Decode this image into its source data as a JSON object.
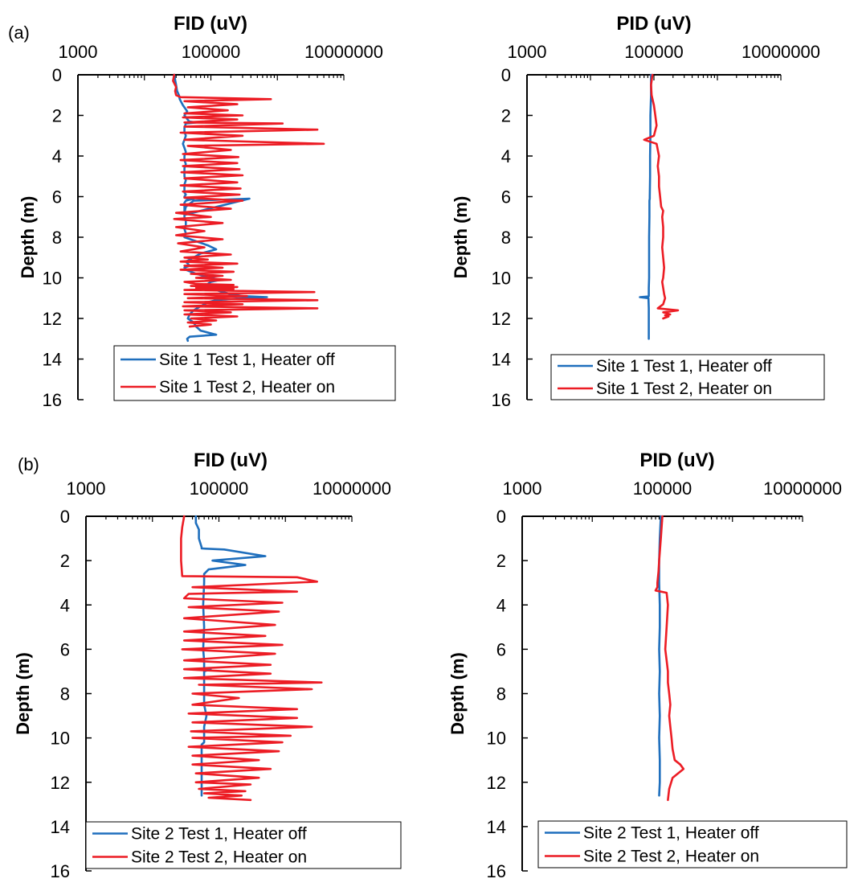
{
  "panel_labels": [
    "(a)",
    "(b)"
  ],
  "colors": {
    "series1": "#1f6fbd",
    "series2": "#ec1c24",
    "axis": "#000000"
  },
  "chart_data": [
    {
      "type": "line",
      "panel": "(a)",
      "title": "FID (uV)",
      "xlabel": "FID (uV)",
      "ylabel": "Depth (m)",
      "xscale": "log",
      "xlim": [
        1000,
        10000000
      ],
      "xticks": [
        1000,
        100000,
        10000000
      ],
      "xtick_labels": [
        "1000",
        "100000",
        "10000000"
      ],
      "ylim": [
        0,
        16
      ],
      "yinverted": true,
      "yticks": [
        0,
        2,
        4,
        6,
        8,
        10,
        12,
        14,
        16
      ],
      "ytick_labels": [
        "0",
        "2",
        "4",
        "6",
        "8",
        "10",
        "12",
        "14",
        "16"
      ],
      "legend_position": "bottom",
      "grid": false,
      "series": [
        {
          "name": "Site 1 Test 1, Heater off",
          "color": "#1f6fbd",
          "x": [
            28000,
            30000,
            31000,
            33000,
            34000,
            38000,
            44000,
            40000,
            47000,
            60000,
            42000,
            40000,
            40000,
            42000,
            40000,
            38000,
            40000,
            42000,
            40000,
            40000,
            42000,
            40000,
            40000,
            40000,
            42000,
            40000,
            40000,
            40000,
            42000,
            40000,
            40000,
            45000,
            55000,
            48000,
            42000,
            40000,
            40000,
            40000,
            40000,
            380000,
            55000,
            42000,
            40000,
            40000,
            42000,
            42000,
            40000,
            42000,
            40000,
            60000,
            90000,
            120000,
            70000,
            55000,
            42000,
            48000,
            40000,
            42000,
            60000,
            100000,
            140000,
            100000,
            90000,
            90000,
            120000,
            150000,
            200000,
            250000,
            300000,
            700000,
            300000,
            180000,
            120000,
            90000,
            70000,
            55000,
            48000,
            45000,
            55000,
            60000,
            70000,
            120000,
            48000,
            44000,
            45000
          ],
          "y": [
            0.0,
            0.5,
            0.8,
            1.0,
            1.2,
            1.5,
            1.8,
            2.0,
            2.3,
            2.35,
            2.4,
            2.6,
            2.8,
            3.0,
            3.2,
            3.4,
            3.6,
            3.8,
            4.0,
            4.2,
            4.4,
            4.6,
            4.8,
            5.0,
            5.2,
            5.4,
            5.6,
            5.8,
            5.9,
            6.0,
            6.05,
            6.1,
            6.12,
            6.15,
            6.2,
            6.3,
            6.5,
            6.7,
            6.9,
            6.1,
            6.2,
            6.5,
            6.8,
            7.0,
            7.2,
            7.4,
            7.6,
            7.8,
            8.0,
            8.2,
            8.4,
            8.6,
            8.8,
            9.0,
            9.2,
            9.4,
            9.5,
            9.6,
            9.8,
            10.0,
            10.1,
            10.2,
            10.3,
            10.5,
            10.6,
            10.7,
            10.8,
            10.85,
            10.9,
            10.95,
            11.0,
            11.05,
            11.1,
            11.2,
            11.4,
            11.6,
            11.8,
            12.0,
            12.2,
            12.4,
            12.6,
            12.8,
            12.9,
            13.0,
            13.1
          ]
        },
        {
          "name": "Site 1 Test 2, Heater on",
          "color": "#ec1c24",
          "x": [
            28000,
            27000,
            30000,
            29000,
            30000,
            35000,
            800000,
            40000,
            250000,
            45000,
            180000,
            40000,
            300000,
            38000,
            250000,
            40000,
            1200000,
            40000,
            4000000,
            35000,
            300000,
            40000,
            5000000,
            45000,
            200000,
            38000,
            260000,
            35000,
            250000,
            38000,
            270000,
            36000,
            300000,
            40000,
            250000,
            35000,
            280000,
            38000,
            270000,
            40000,
            300000,
            35000,
            200000,
            30000,
            100000,
            28000,
            150000,
            30000,
            80000,
            30000,
            150000,
            32000,
            80000,
            35000,
            200000,
            40000,
            90000,
            35000,
            250000,
            40000,
            150000,
            35000,
            220000,
            50000,
            150000,
            60000,
            200000,
            40000,
            60000,
            220000,
            50000,
            250000,
            60000,
            220000,
            40000,
            3600000,
            40000,
            350000,
            45000,
            4000000,
            40000,
            300000,
            38000,
            4000000,
            40000,
            200000,
            40000,
            250000,
            50000,
            120000,
            45000,
            100000,
            48000
          ],
          "y": [
            0.0,
            0.3,
            0.6,
            0.8,
            1.0,
            1.1,
            1.2,
            1.3,
            1.45,
            1.6,
            1.75,
            1.9,
            2.0,
            2.1,
            2.2,
            2.35,
            2.4,
            2.55,
            2.7,
            2.85,
            3.0,
            3.2,
            3.4,
            3.5,
            3.7,
            3.9,
            4.05,
            4.2,
            4.35,
            4.5,
            4.65,
            4.8,
            4.95,
            5.1,
            5.3,
            5.45,
            5.6,
            5.75,
            5.9,
            6.05,
            6.2,
            6.4,
            6.6,
            6.8,
            7.0,
            7.1,
            7.3,
            7.5,
            7.7,
            7.9,
            8.1,
            8.3,
            8.5,
            8.7,
            8.85,
            9.0,
            9.1,
            9.2,
            9.3,
            9.4,
            9.5,
            9.6,
            9.7,
            9.8,
            9.9,
            10.0,
            10.1,
            10.2,
            10.3,
            10.35,
            10.4,
            10.45,
            10.5,
            10.55,
            10.6,
            10.7,
            10.8,
            10.9,
            11.0,
            11.1,
            11.2,
            11.3,
            11.4,
            11.5,
            11.6,
            11.7,
            11.8,
            11.9,
            12.0,
            12.1,
            12.2,
            12.3,
            12.4
          ]
        }
      ]
    },
    {
      "type": "line",
      "panel": "(a)",
      "title": "PID (uV)",
      "xlabel": "PID (uV)",
      "ylabel": "Depth (m)",
      "xscale": "log",
      "xlim": [
        1000,
        10000000
      ],
      "xticks": [
        1000,
        100000,
        10000000
      ],
      "xtick_labels": [
        "1000",
        "100000",
        "10000000"
      ],
      "ylim": [
        0,
        16
      ],
      "yinverted": true,
      "yticks": [
        0,
        2,
        4,
        6,
        8,
        10,
        12,
        14,
        16
      ],
      "ytick_labels": [
        "0",
        "2",
        "4",
        "6",
        "8",
        "10",
        "12",
        "14",
        "16"
      ],
      "legend_position": "bottom",
      "grid": false,
      "series": [
        {
          "name": "Site 1 Test 1, Heater off",
          "color": "#1f6fbd",
          "x": [
            90000,
            90000,
            88000,
            88000,
            87000,
            87000,
            86000,
            86000,
            85000,
            85000,
            84000,
            84000,
            84000,
            83000,
            83000,
            83000,
            83000,
            82000,
            60000,
            82000,
            83000,
            83000,
            83000
          ],
          "y": [
            0.0,
            1.0,
            2.0,
            3.0,
            4.0,
            5.0,
            6.0,
            6.1,
            6.2,
            7.0,
            8.0,
            9.0,
            10.0,
            10.5,
            10.7,
            10.85,
            10.9,
            10.92,
            10.95,
            11.0,
            11.5,
            12.5,
            13.0
          ]
        },
        {
          "name": "Site 1 Test 2, Heater on",
          "color": "#ec1c24",
          "x": [
            95000,
            90000,
            92000,
            100000,
            105000,
            110000,
            100000,
            70000,
            110000,
            115000,
            120000,
            115000,
            120000,
            120000,
            125000,
            130000,
            140000,
            135000,
            140000,
            140000,
            135000,
            140000,
            145000,
            140000,
            135000,
            140000,
            145000,
            150000,
            140000,
            115000,
            240000,
            140000,
            180000,
            150000,
            170000,
            140000
          ],
          "y": [
            0.0,
            0.5,
            1.0,
            1.5,
            2.0,
            2.5,
            3.0,
            3.2,
            3.4,
            3.7,
            4.0,
            4.5,
            5.0,
            5.5,
            6.0,
            6.5,
            6.7,
            7.0,
            7.5,
            8.0,
            8.5,
            9.0,
            9.5,
            10.0,
            10.2,
            10.5,
            10.8,
            11.0,
            11.3,
            11.5,
            11.6,
            11.7,
            11.8,
            11.85,
            11.9,
            12.0
          ]
        }
      ]
    },
    {
      "type": "line",
      "panel": "(b)",
      "title": "FID (uV)",
      "xlabel": "FID (uV)",
      "ylabel": "Depth (m)",
      "xscale": "log",
      "xlim": [
        1000,
        10000000
      ],
      "xticks": [
        1000,
        100000,
        10000000
      ],
      "xtick_labels": [
        "1000",
        "100000",
        "10000000"
      ],
      "ylim": [
        0,
        16
      ],
      "yinverted": true,
      "yticks": [
        0,
        2,
        4,
        6,
        8,
        10,
        12,
        14,
        16
      ],
      "ytick_labels": [
        "0",
        "2",
        "4",
        "6",
        "8",
        "10",
        "12",
        "14",
        "16"
      ],
      "legend_position": "bottom",
      "grid": false,
      "series": [
        {
          "name": "Site 2 Test 1, Heater off",
          "color": "#1f6fbd",
          "x": [
            45000,
            45000,
            50000,
            50000,
            55000,
            55000,
            120000,
            500000,
            80000,
            250000,
            70000,
            60000,
            60000,
            58000,
            60000,
            58000,
            60000,
            60000,
            60000,
            75000,
            60000,
            60000,
            60000,
            60000,
            65000,
            60000,
            60000,
            60000,
            55000,
            55000,
            55000,
            55000
          ],
          "y": [
            0.0,
            0.3,
            0.6,
            1.0,
            1.4,
            1.45,
            1.5,
            1.8,
            2.0,
            2.2,
            2.4,
            2.6,
            3.0,
            4.0,
            5.0,
            6.0,
            6.5,
            6.8,
            6.85,
            6.9,
            7.0,
            7.5,
            8.0,
            8.5,
            9.0,
            9.5,
            10.0,
            10.2,
            10.3,
            11.0,
            12.0,
            12.6
          ]
        },
        {
          "name": "Site 2 Test 2, Heater on",
          "color": "#ec1c24",
          "x": [
            30000,
            28000,
            27000,
            27000,
            27000,
            28000,
            1500000,
            3000000,
            40000,
            1500000,
            35000,
            30000,
            900000,
            35000,
            800000,
            30000,
            700000,
            30000,
            500000,
            30000,
            900000,
            28000,
            700000,
            30000,
            600000,
            30000,
            600000,
            30000,
            3500000,
            50000,
            2500000,
            40000,
            200000,
            40000,
            1500000,
            35000,
            1500000,
            40000,
            2500000,
            38000,
            1200000,
            40000,
            900000,
            35000,
            800000,
            40000,
            400000,
            40000,
            600000,
            45000,
            400000,
            45000,
            300000,
            50000,
            250000,
            60000,
            220000,
            70000,
            300000
          ],
          "y": [
            0.0,
            0.5,
            1.0,
            1.5,
            2.0,
            2.7,
            2.75,
            2.95,
            3.2,
            3.4,
            3.5,
            3.7,
            3.9,
            4.1,
            4.3,
            4.6,
            4.9,
            5.2,
            5.4,
            5.6,
            5.8,
            6.0,
            6.2,
            6.5,
            6.7,
            6.9,
            7.1,
            7.3,
            7.5,
            7.6,
            7.8,
            8.0,
            8.2,
            8.5,
            8.7,
            8.9,
            9.1,
            9.3,
            9.5,
            9.7,
            9.9,
            10.0,
            10.2,
            10.4,
            10.6,
            10.8,
            11.0,
            11.2,
            11.4,
            11.6,
            11.8,
            12.0,
            12.1,
            12.3,
            12.4,
            12.5,
            12.6,
            12.7,
            12.8
          ]
        }
      ]
    },
    {
      "type": "line",
      "panel": "(b)",
      "title": "PID (uV)",
      "xlabel": "PID (uV)",
      "ylabel": "Depth (m)",
      "xscale": "log",
      "xlim": [
        1000,
        10000000
      ],
      "xticks": [
        1000,
        100000,
        10000000
      ],
      "xtick_labels": [
        "1000",
        "100000",
        "10000000"
      ],
      "ylim": [
        0,
        16
      ],
      "yinverted": true,
      "yticks": [
        0,
        2,
        4,
        6,
        8,
        10,
        12,
        14,
        16
      ],
      "ytick_labels": [
        "0",
        "2",
        "4",
        "6",
        "8",
        "10",
        "12",
        "14",
        "16"
      ],
      "legend_position": "bottom",
      "grid": false,
      "series": [
        {
          "name": "Site 2 Test 1, Heater off",
          "color": "#1f6fbd",
          "x": [
            95000,
            92000,
            90000,
            90000,
            92000,
            92000,
            90000,
            92000,
            90000,
            92000,
            90000,
            92000,
            92000,
            90000
          ],
          "y": [
            0.0,
            1.0,
            2.0,
            3.0,
            4.0,
            5.0,
            6.0,
            7.0,
            8.0,
            9.0,
            10.0,
            11.0,
            12.0,
            12.6
          ]
        },
        {
          "name": "Site 2 Test 2, Heater on",
          "color": "#ec1c24",
          "x": [
            100000,
            95000,
            90000,
            88000,
            85000,
            85000,
            80000,
            115000,
            120000,
            115000,
            110000,
            115000,
            120000,
            120000,
            125000,
            130000,
            125000,
            130000,
            135000,
            140000,
            150000,
            180000,
            200000,
            140000,
            125000,
            120000
          ],
          "y": [
            0.0,
            1.0,
            2.0,
            2.5,
            3.0,
            3.2,
            3.35,
            3.45,
            4.0,
            5.0,
            6.0,
            6.5,
            7.0,
            7.5,
            8.0,
            8.5,
            9.0,
            9.5,
            10.0,
            10.5,
            11.0,
            11.2,
            11.4,
            11.8,
            12.3,
            12.8
          ]
        }
      ]
    }
  ]
}
